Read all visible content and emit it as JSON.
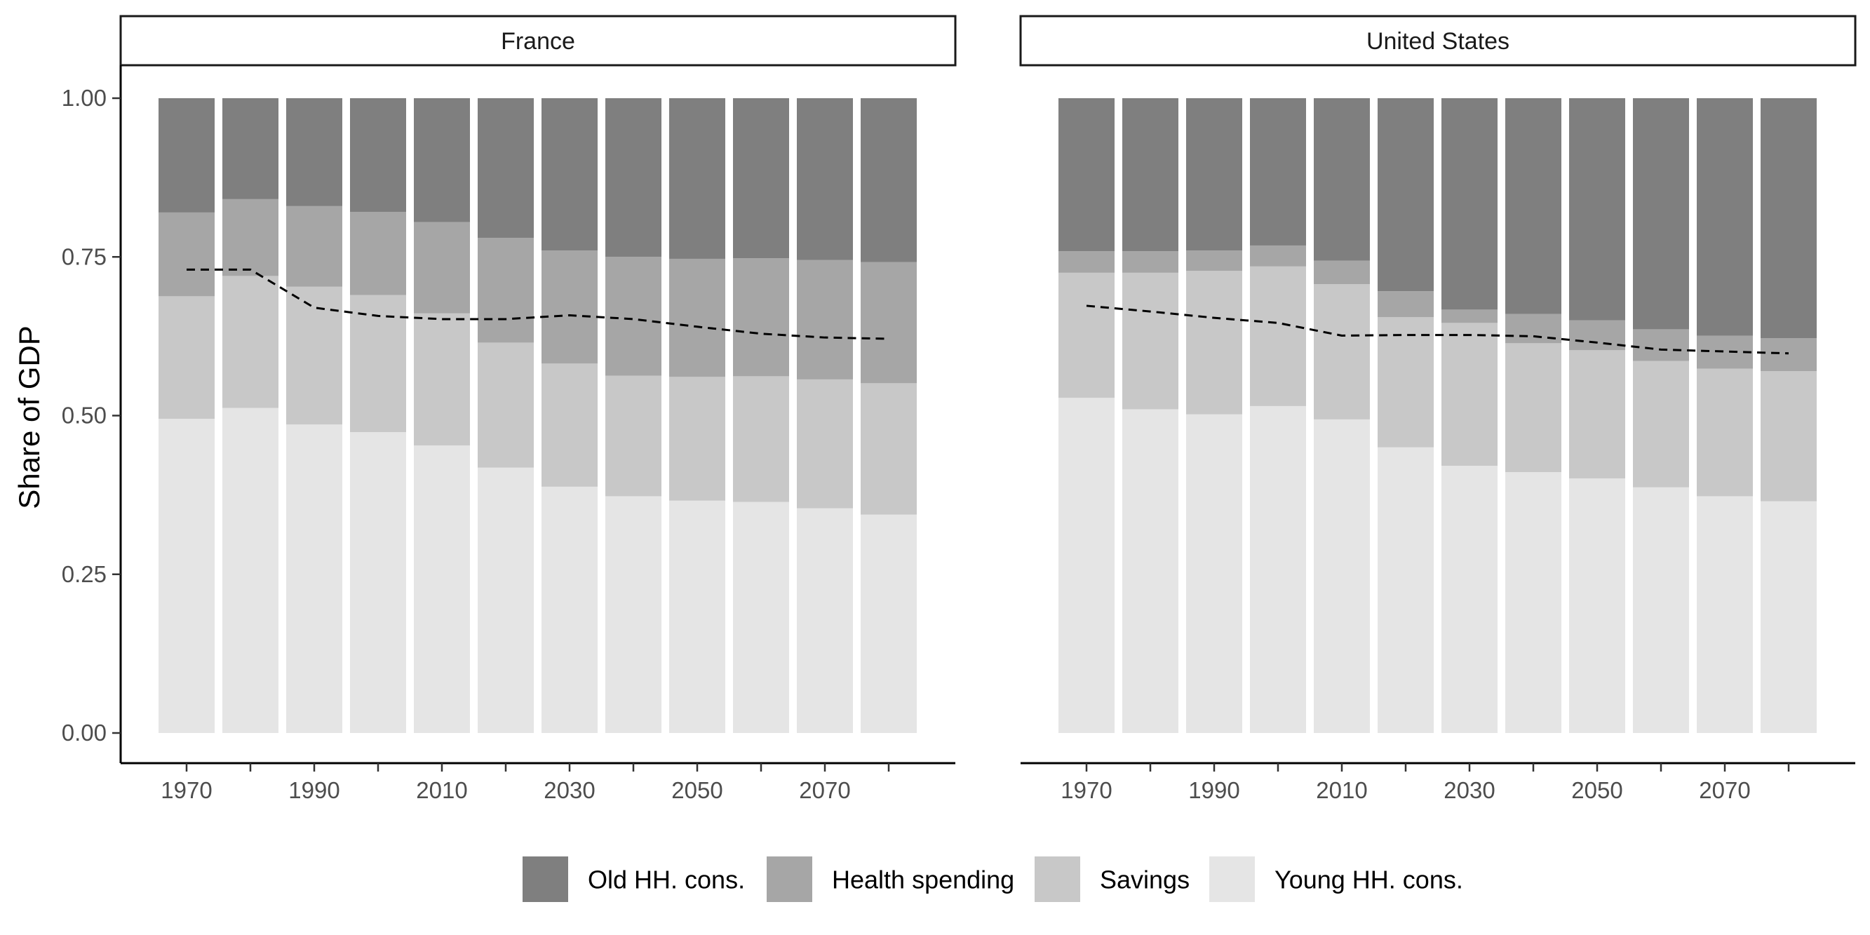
{
  "chart_data": {
    "type": "bar",
    "stacked": true,
    "ylabel": "Share of GDP",
    "xlabel": "",
    "ylim": [
      0,
      1
    ],
    "yticks": [
      "0.00",
      "0.25",
      "0.50",
      "0.75",
      "1.00"
    ],
    "x": [
      1970,
      1980,
      1990,
      2000,
      2010,
      2020,
      2030,
      2040,
      2050,
      2060,
      2070,
      2080
    ],
    "xtick_labels": [
      "1970",
      "1990",
      "2010",
      "2030",
      "2050",
      "2070"
    ],
    "series_order": [
      "Young HH. cons.",
      "Savings",
      "Health spending",
      "Old HH. cons."
    ],
    "legend": {
      "position": "bottom",
      "entries": [
        {
          "name": "Old HH. cons.",
          "color": "#7f7f7f"
        },
        {
          "name": "Health spending",
          "color": "#a6a6a6"
        },
        {
          "name": "Savings",
          "color": "#c8c8c8"
        },
        {
          "name": "Young HH. cons.",
          "color": "#e5e5e5"
        }
      ]
    },
    "line_style": "dashed",
    "panels": [
      {
        "title": "France",
        "series": [
          {
            "name": "Young HH. cons.",
            "values": [
              0.495,
              0.512,
              0.486,
              0.474,
              0.453,
              0.418,
              0.388,
              0.373,
              0.366,
              0.364,
              0.354,
              0.344
            ]
          },
          {
            "name": "Savings",
            "values": [
              0.193,
              0.208,
              0.217,
              0.216,
              0.208,
              0.197,
              0.194,
              0.19,
              0.195,
              0.198,
              0.203,
              0.207
            ]
          },
          {
            "name": "Health spending",
            "values": [
              0.132,
              0.121,
              0.127,
              0.131,
              0.144,
              0.165,
              0.178,
              0.187,
              0.186,
              0.186,
              0.188,
              0.191
            ]
          },
          {
            "name": "Old HH. cons.",
            "values": [
              0.18,
              0.159,
              0.17,
              0.179,
              0.195,
              0.22,
              0.24,
              0.25,
              0.253,
              0.252,
              0.255,
              0.258
            ]
          }
        ],
        "line": [
          0.73,
          0.73,
          0.67,
          0.657,
          0.652,
          0.652,
          0.658,
          0.652,
          0.64,
          0.629,
          0.623,
          0.621
        ]
      },
      {
        "title": "United States",
        "series": [
          {
            "name": "Young HH. cons.",
            "values": [
              0.528,
              0.51,
              0.502,
              0.515,
              0.494,
              0.45,
              0.421,
              0.411,
              0.401,
              0.387,
              0.373,
              0.365
            ]
          },
          {
            "name": "Savings",
            "values": [
              0.197,
              0.215,
              0.226,
              0.22,
              0.213,
              0.205,
              0.225,
              0.203,
              0.202,
              0.199,
              0.201,
              0.205
            ]
          },
          {
            "name": "Health spending",
            "values": [
              0.034,
              0.034,
              0.032,
              0.033,
              0.037,
              0.041,
              0.021,
              0.046,
              0.047,
              0.05,
              0.052,
              0.052
            ]
          },
          {
            "name": "Old HH. cons.",
            "values": [
              0.241,
              0.241,
              0.24,
              0.232,
              0.256,
              0.304,
              0.333,
              0.34,
              0.35,
              0.364,
              0.374,
              0.378
            ]
          }
        ],
        "line": [
          0.673,
          0.664,
          0.654,
          0.646,
          0.626,
          0.627,
          0.627,
          0.625,
          0.615,
          0.604,
          0.601,
          0.598
        ]
      }
    ]
  }
}
